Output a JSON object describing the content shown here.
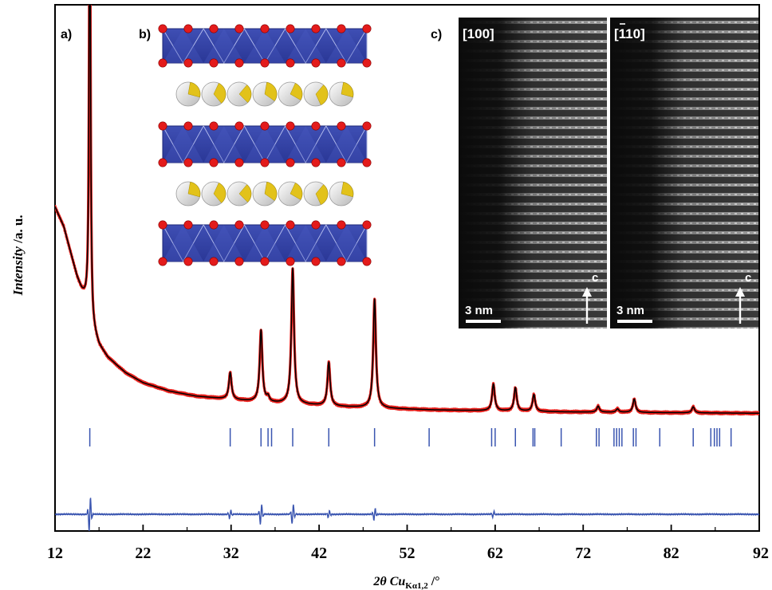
{
  "chart_data": {
    "type": "line",
    "xlabel": {
      "prefix": "2θ Cu",
      "subscript": "Kα1,2",
      "suffix": " /°"
    },
    "ylabel": {
      "italic": "Intensity",
      "suffix": " /a. u."
    },
    "xlim": [
      12,
      92
    ],
    "xticks": [
      "12",
      "22",
      "32",
      "42",
      "52",
      "62",
      "72",
      "82",
      "92"
    ],
    "colors": {
      "observed": "#e8201c",
      "calculated": "#000000",
      "reflections": "#3a55b0",
      "difference": "#3a55b0"
    },
    "background": {
      "x": [
        12,
        13,
        14,
        14.5,
        15,
        15.4,
        15.9,
        16.3,
        17,
        18,
        20,
        22,
        25,
        28,
        32,
        36,
        40,
        45,
        50,
        55,
        60,
        70,
        80,
        92
      ],
      "y": [
        0.62,
        0.56,
        0.46,
        0.41,
        0.37,
        0.345,
        0.31,
        0.25,
        0.205,
        0.17,
        0.125,
        0.095,
        0.07,
        0.055,
        0.045,
        0.035,
        0.03,
        0.023,
        0.018,
        0.014,
        0.012,
        0.008,
        0.006,
        0.004
      ]
    },
    "peaks": [
      {
        "x": 15.95,
        "height": 1.5
      },
      {
        "x": 31.9,
        "height": 0.08
      },
      {
        "x": 35.4,
        "height": 0.215
      },
      {
        "x": 36.2,
        "height": 0.015
      },
      {
        "x": 39.0,
        "height": 0.405
      },
      {
        "x": 43.1,
        "height": 0.13
      },
      {
        "x": 48.3,
        "height": 0.325
      },
      {
        "x": 61.8,
        "height": 0.08
      },
      {
        "x": 64.3,
        "height": 0.07
      },
      {
        "x": 66.4,
        "height": 0.05
      },
      {
        "x": 73.7,
        "height": 0.018
      },
      {
        "x": 75.9,
        "height": 0.01
      },
      {
        "x": 77.8,
        "height": 0.04
      },
      {
        "x": 84.5,
        "height": 0.018
      }
    ],
    "reflections_x": [
      15.95,
      31.9,
      35.4,
      36.2,
      36.6,
      39.0,
      43.1,
      48.3,
      54.5,
      61.6,
      62.0,
      64.3,
      66.3,
      66.5,
      69.5,
      73.5,
      73.8,
      75.5,
      75.8,
      76.1,
      76.4,
      77.7,
      78.0,
      80.7,
      84.5,
      86.5,
      86.9,
      87.2,
      87.5,
      88.8
    ],
    "difference": {
      "baseline": 0,
      "spikes": [
        {
          "x": 15.95,
          "amp": 0.06
        },
        {
          "x": 31.9,
          "amp": 0.015
        },
        {
          "x": 35.4,
          "amp": 0.035
        },
        {
          "x": 39.0,
          "amp": 0.035
        },
        {
          "x": 43.1,
          "amp": 0.012
        },
        {
          "x": 48.3,
          "amp": 0.02
        },
        {
          "x": 61.8,
          "amp": 0.01
        }
      ]
    }
  },
  "panels": {
    "a": "a)",
    "b": "b)",
    "c": "c)"
  },
  "tem": {
    "left_label": "[100]",
    "right_label_bar": "1",
    "right_label": "[110]",
    "scale_text": "3 nm",
    "axis_letter": "c"
  }
}
